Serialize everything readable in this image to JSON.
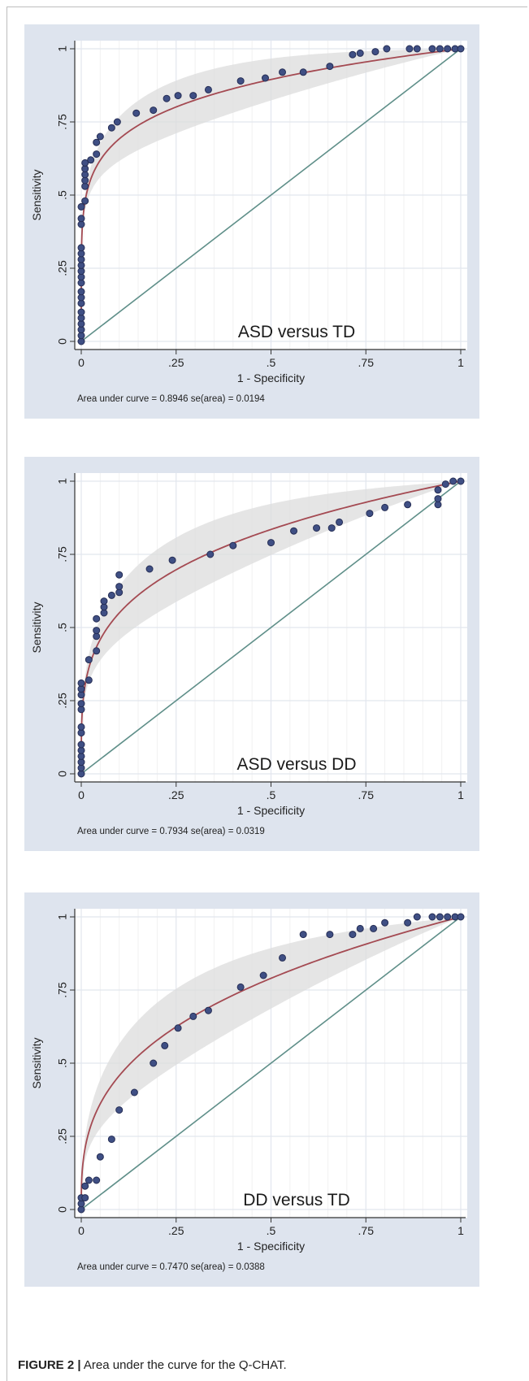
{
  "figure_caption": {
    "label": "FIGURE 2 |",
    "text": " Area under the curve for the Q-CHAT."
  },
  "chart_data": [
    {
      "type": "scatter",
      "title": "ASD versus TD",
      "xlabel": "1 - Specificity",
      "ylabel": "Sensitivity",
      "xlim": [
        0,
        1
      ],
      "ylim": [
        0,
        1
      ],
      "xticks": [
        "0",
        ".25",
        ".5",
        ".75",
        "1"
      ],
      "yticks": [
        "0",
        ".25",
        ".5",
        ".75",
        "1"
      ],
      "grid": true,
      "area_text": "Area under curve = 0.8946  se(area) = 0.0194",
      "fitted_curve_exponent": 0.16,
      "band_halfwidth": 0.09,
      "points": [
        [
          0,
          0
        ],
        [
          0,
          0.02
        ],
        [
          0,
          0.04
        ],
        [
          0,
          0.06
        ],
        [
          0,
          0.08
        ],
        [
          0,
          0.1
        ],
        [
          0,
          0.13
        ],
        [
          0,
          0.15
        ],
        [
          0,
          0.17
        ],
        [
          0,
          0.2
        ],
        [
          0,
          0.22
        ],
        [
          0,
          0.24
        ],
        [
          0,
          0.26
        ],
        [
          0,
          0.28
        ],
        [
          0,
          0.3
        ],
        [
          0,
          0.32
        ],
        [
          0,
          0.4
        ],
        [
          0,
          0.42
        ],
        [
          0,
          0.46
        ],
        [
          0.01,
          0.48
        ],
        [
          0.01,
          0.53
        ],
        [
          0.01,
          0.55
        ],
        [
          0.01,
          0.57
        ],
        [
          0.01,
          0.59
        ],
        [
          0.01,
          0.61
        ],
        [
          0.025,
          0.62
        ],
        [
          0.04,
          0.64
        ],
        [
          0.04,
          0.68
        ],
        [
          0.05,
          0.7
        ],
        [
          0.08,
          0.73
        ],
        [
          0.095,
          0.75
        ],
        [
          0.145,
          0.78
        ],
        [
          0.19,
          0.79
        ],
        [
          0.225,
          0.83
        ],
        [
          0.255,
          0.84
        ],
        [
          0.295,
          0.84
        ],
        [
          0.335,
          0.86
        ],
        [
          0.42,
          0.89
        ],
        [
          0.485,
          0.9
        ],
        [
          0.53,
          0.92
        ],
        [
          0.585,
          0.92
        ],
        [
          0.655,
          0.94
        ],
        [
          0.715,
          0.98
        ],
        [
          0.735,
          0.985
        ],
        [
          0.775,
          0.99
        ],
        [
          0.805,
          1.0
        ],
        [
          0.865,
          1.0
        ],
        [
          0.885,
          1.0
        ],
        [
          0.925,
          1.0
        ],
        [
          0.945,
          1.0
        ],
        [
          0.965,
          1.0
        ],
        [
          0.985,
          1.0
        ],
        [
          1,
          1
        ]
      ]
    },
    {
      "type": "scatter",
      "title": "ASD versus DD",
      "xlabel": "1 - Specificity",
      "ylabel": "Sensitivity",
      "xlim": [
        0,
        1
      ],
      "ylim": [
        0,
        1
      ],
      "xticks": [
        "0",
        ".25",
        ".5",
        ".75",
        "1"
      ],
      "yticks": [
        "0",
        ".25",
        ".5",
        ".75",
        "1"
      ],
      "grid": true,
      "area_text": "Area under curve = 0.7934  se(area) = 0.0319",
      "fitted_curve_exponent": 0.26,
      "band_halfwidth": 0.11,
      "points": [
        [
          0,
          0
        ],
        [
          0,
          0.02
        ],
        [
          0,
          0.04
        ],
        [
          0,
          0.06
        ],
        [
          0,
          0.08
        ],
        [
          0,
          0.1
        ],
        [
          0,
          0.14
        ],
        [
          0,
          0.16
        ],
        [
          0,
          0.22
        ],
        [
          0,
          0.24
        ],
        [
          0,
          0.27
        ],
        [
          0,
          0.29
        ],
        [
          0,
          0.31
        ],
        [
          0.02,
          0.32
        ],
        [
          0.02,
          0.39
        ],
        [
          0.04,
          0.42
        ],
        [
          0.04,
          0.47
        ],
        [
          0.04,
          0.49
        ],
        [
          0.04,
          0.53
        ],
        [
          0.06,
          0.55
        ],
        [
          0.06,
          0.57
        ],
        [
          0.06,
          0.59
        ],
        [
          0.08,
          0.61
        ],
        [
          0.1,
          0.62
        ],
        [
          0.1,
          0.64
        ],
        [
          0.1,
          0.68
        ],
        [
          0.18,
          0.7
        ],
        [
          0.24,
          0.73
        ],
        [
          0.34,
          0.75
        ],
        [
          0.4,
          0.78
        ],
        [
          0.5,
          0.79
        ],
        [
          0.56,
          0.83
        ],
        [
          0.62,
          0.84
        ],
        [
          0.66,
          0.84
        ],
        [
          0.68,
          0.86
        ],
        [
          0.76,
          0.89
        ],
        [
          0.8,
          0.91
        ],
        [
          0.86,
          0.92
        ],
        [
          0.94,
          0.92
        ],
        [
          0.94,
          0.94
        ],
        [
          0.94,
          0.97
        ],
        [
          0.96,
          0.99
        ],
        [
          0.98,
          1.0
        ],
        [
          1,
          1
        ]
      ]
    },
    {
      "type": "scatter",
      "title": "DD versus TD",
      "xlabel": "1 - Specificity",
      "ylabel": "Sensitivity",
      "xlim": [
        0,
        1
      ],
      "ylim": [
        0,
        1
      ],
      "xticks": [
        "0",
        ".25",
        ".5",
        ".75",
        "1"
      ],
      "yticks": [
        "0",
        ".25",
        ".5",
        ".75",
        "1"
      ],
      "grid": true,
      "area_text": "Area under curve = 0.7470  se(area) = 0.0388",
      "fitted_curve_exponent": 0.34,
      "band_halfwidth": 0.13,
      "points": [
        [
          0,
          0
        ],
        [
          0,
          0.02
        ],
        [
          0,
          0.04
        ],
        [
          0.01,
          0.04
        ],
        [
          0.01,
          0.08
        ],
        [
          0.02,
          0.1
        ],
        [
          0.04,
          0.1
        ],
        [
          0.05,
          0.18
        ],
        [
          0.08,
          0.24
        ],
        [
          0.1,
          0.34
        ],
        [
          0.14,
          0.4
        ],
        [
          0.19,
          0.5
        ],
        [
          0.22,
          0.56
        ],
        [
          0.255,
          0.62
        ],
        [
          0.295,
          0.66
        ],
        [
          0.335,
          0.68
        ],
        [
          0.42,
          0.76
        ],
        [
          0.48,
          0.8
        ],
        [
          0.53,
          0.86
        ],
        [
          0.585,
          0.94
        ],
        [
          0.655,
          0.94
        ],
        [
          0.715,
          0.94
        ],
        [
          0.735,
          0.96
        ],
        [
          0.77,
          0.96
        ],
        [
          0.8,
          0.98
        ],
        [
          0.86,
          0.98
        ],
        [
          0.885,
          1.0
        ],
        [
          0.925,
          1.0
        ],
        [
          0.945,
          1.0
        ],
        [
          0.965,
          1.0
        ],
        [
          0.985,
          1.0
        ],
        [
          1,
          1
        ]
      ]
    }
  ]
}
